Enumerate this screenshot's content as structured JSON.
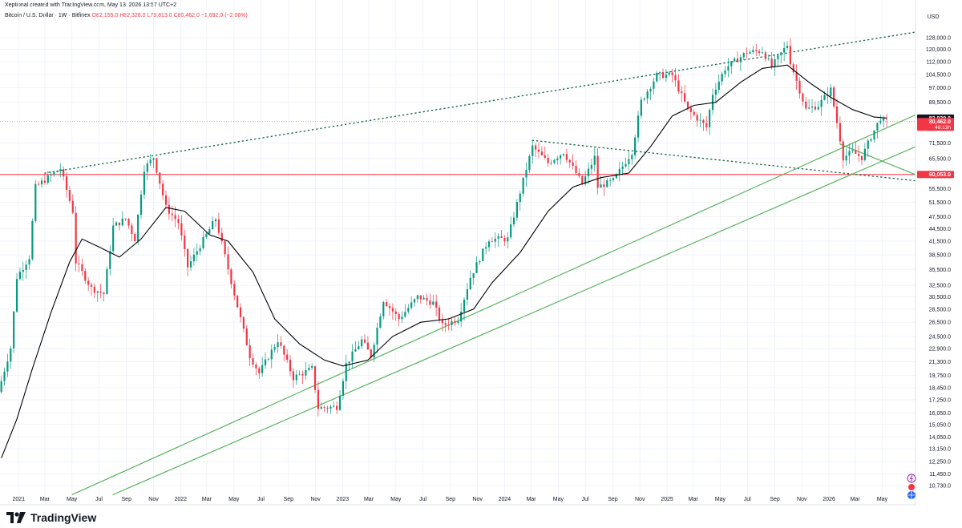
{
  "header": {
    "caption": "Xeptional created with TradingView.com, May 13, 2026 13:57 UTC+2",
    "symbol": "Bitcoin / U.S. Dollar · 1W · Bitfinex",
    "open": "O82,155.0",
    "high": "H82,328.0",
    "low": "L79,813.0",
    "close": "C80,462.0",
    "change": "−1,692.0 (−2.06%)"
  },
  "brand": {
    "name": "TradingView"
  },
  "colors": {
    "up": "#089981",
    "down": "#f23645",
    "ma": "#000000",
    "trend": "#4caf50",
    "upper": "#1b6b4e",
    "support": "#f23645"
  },
  "chart_data": {
    "type": "candlestick",
    "currency": "USD",
    "yscale": "log",
    "ylim": [
      10000,
      135000
    ],
    "xlim": [
      "2020-11-20",
      "2026-07-15"
    ],
    "yticks": [
      10730,
      11450,
      12250,
      13150,
      14050,
      15050,
      16050,
      17250,
      18450,
      19750,
      21300,
      22900,
      24500,
      26500,
      28500,
      30500,
      32500,
      35500,
      38500,
      41500,
      44500,
      47500,
      51500,
      55500,
      59500,
      65500,
      71500,
      80462,
      82039,
      89500,
      97000,
      104500,
      112000,
      120000,
      128000
    ],
    "ytick_labels": [
      "10,730.0",
      "11,450.0",
      "12,250.0",
      "13,150.0",
      "14,050.0",
      "15,050.0",
      "16,050.0",
      "17,250.0",
      "18,450.0",
      "19,750.0",
      "21,300.0",
      "22,900.0",
      "24,500.0",
      "26,500.0",
      "28,500.0",
      "30,500.0",
      "32,500.0",
      "35,500.0",
      "38,500.0",
      "41,500.0",
      "44,500.0",
      "47,500.0",
      "51,500.0",
      "55,500.0",
      "59,500.0",
      "65,500.0",
      "71,500.0",
      "80,462.0",
      "82,039.0",
      "89,500.0",
      "97,000.0",
      "104,500.0",
      "112,000.0",
      "120,000.0",
      "128,000.0"
    ],
    "xticks": [
      {
        "date": "2021-01-01",
        "label": "2021"
      },
      {
        "date": "2021-03-01",
        "label": "Mar"
      },
      {
        "date": "2021-05-01",
        "label": "May"
      },
      {
        "date": "2021-07-01",
        "label": "Jul"
      },
      {
        "date": "2021-09-01",
        "label": "Sep"
      },
      {
        "date": "2021-11-01",
        "label": "Nov"
      },
      {
        "date": "2022-01-01",
        "label": "2022"
      },
      {
        "date": "2022-03-01",
        "label": "Mar"
      },
      {
        "date": "2022-05-01",
        "label": "May"
      },
      {
        "date": "2022-07-01",
        "label": "Jul"
      },
      {
        "date": "2022-09-01",
        "label": "Sep"
      },
      {
        "date": "2022-11-01",
        "label": "Nov"
      },
      {
        "date": "2023-01-01",
        "label": "2023"
      },
      {
        "date": "2023-03-01",
        "label": "Mar"
      },
      {
        "date": "2023-05-01",
        "label": "May"
      },
      {
        "date": "2023-07-01",
        "label": "Jul"
      },
      {
        "date": "2023-09-01",
        "label": "Sep"
      },
      {
        "date": "2023-11-01",
        "label": "Nov"
      },
      {
        "date": "2024-01-01",
        "label": "2024"
      },
      {
        "date": "2024-03-01",
        "label": "Mar"
      },
      {
        "date": "2024-05-01",
        "label": "May"
      },
      {
        "date": "2024-07-01",
        "label": "Jul"
      },
      {
        "date": "2024-09-01",
        "label": "Sep"
      },
      {
        "date": "2024-11-01",
        "label": "Nov"
      },
      {
        "date": "2025-01-01",
        "label": "2025"
      },
      {
        "date": "2025-03-01",
        "label": "Mar"
      },
      {
        "date": "2025-05-01",
        "label": "May"
      },
      {
        "date": "2025-07-01",
        "label": "Jul"
      },
      {
        "date": "2025-09-01",
        "label": "Sep"
      },
      {
        "date": "2025-11-01",
        "label": "Nov"
      },
      {
        "date": "2026-01-01",
        "label": "2026"
      },
      {
        "date": "2026-03-01",
        "label": "Mar"
      },
      {
        "date": "2026-05-01",
        "label": "May"
      }
    ],
    "price_path": [
      [
        "2020-11-23",
        18000
      ],
      [
        "2020-12-21",
        23000
      ],
      [
        "2021-01-04",
        34000
      ],
      [
        "2021-02-01",
        38000
      ],
      [
        "2021-02-15",
        56000
      ],
      [
        "2021-03-15",
        59000
      ],
      [
        "2021-04-12",
        62000
      ],
      [
        "2021-05-10",
        49000
      ],
      [
        "2021-05-17",
        37000
      ],
      [
        "2021-06-21",
        32000
      ],
      [
        "2021-07-19",
        31000
      ],
      [
        "2021-08-09",
        45000
      ],
      [
        "2021-09-06",
        47000
      ],
      [
        "2021-09-27",
        42000
      ],
      [
        "2021-10-18",
        62000
      ],
      [
        "2021-11-08",
        66000
      ],
      [
        "2021-12-06",
        50000
      ],
      [
        "2022-01-03",
        46000
      ],
      [
        "2022-01-24",
        36000
      ],
      [
        "2022-03-28",
        47000
      ],
      [
        "2022-05-09",
        31000
      ],
      [
        "2022-06-13",
        22000
      ],
      [
        "2022-07-04",
        20000
      ],
      [
        "2022-08-15",
        24000
      ],
      [
        "2022-09-19",
        19500
      ],
      [
        "2022-10-31",
        20500
      ],
      [
        "2022-11-14",
        16500
      ],
      [
        "2022-12-26",
        16600
      ],
      [
        "2023-01-16",
        21000
      ],
      [
        "2023-02-20",
        24000
      ],
      [
        "2023-03-13",
        22000
      ],
      [
        "2023-04-10",
        30000
      ],
      [
        "2023-05-15",
        27000
      ],
      [
        "2023-06-26",
        30500
      ],
      [
        "2023-07-31",
        29500
      ],
      [
        "2023-08-21",
        26000
      ],
      [
        "2023-09-25",
        27000
      ],
      [
        "2023-10-23",
        34000
      ],
      [
        "2023-12-04",
        42000
      ],
      [
        "2024-01-15",
        42000
      ],
      [
        "2024-02-26",
        62000
      ],
      [
        "2024-03-11",
        70000
      ],
      [
        "2024-04-15",
        64000
      ],
      [
        "2024-05-20",
        68000
      ],
      [
        "2024-07-01",
        57000
      ],
      [
        "2024-07-29",
        66000
      ],
      [
        "2024-08-05",
        56000
      ],
      [
        "2024-09-09",
        58000
      ],
      [
        "2024-10-21",
        68000
      ],
      [
        "2024-11-11",
        90000
      ],
      [
        "2024-12-16",
        104000
      ],
      [
        "2025-01-20",
        104000
      ],
      [
        "2025-02-24",
        86000
      ],
      [
        "2025-04-07",
        78000
      ],
      [
        "2025-04-21",
        94000
      ],
      [
        "2025-05-19",
        108000
      ],
      [
        "2025-07-07",
        118000
      ],
      [
        "2025-08-11",
        119000
      ],
      [
        "2025-09-01",
        109000
      ],
      [
        "2025-10-06",
        123000
      ],
      [
        "2025-10-13",
        112000
      ],
      [
        "2025-11-17",
        86000
      ],
      [
        "2025-12-15",
        88000
      ],
      [
        "2026-01-12",
        96000
      ],
      [
        "2026-02-02",
        73000
      ],
      [
        "2026-02-09",
        66000
      ],
      [
        "2026-03-02",
        68000
      ],
      [
        "2026-03-23",
        66000
      ],
      [
        "2026-04-13",
        74000
      ],
      [
        "2026-05-04",
        82155
      ],
      [
        "2026-05-11",
        80462
      ]
    ],
    "ma_path": [
      [
        "2020-11-23",
        12500
      ],
      [
        "2020-12-28",
        15500
      ],
      [
        "2021-02-01",
        20500
      ],
      [
        "2021-03-15",
        28000
      ],
      [
        "2021-04-26",
        37000
      ],
      [
        "2021-05-24",
        42000
      ],
      [
        "2021-07-05",
        40000
      ],
      [
        "2021-08-16",
        38000
      ],
      [
        "2021-10-04",
        42000
      ],
      [
        "2021-11-29",
        50000
      ],
      [
        "2022-01-10",
        49000
      ],
      [
        "2022-03-07",
        43000
      ],
      [
        "2022-04-18",
        41500
      ],
      [
        "2022-06-13",
        35000
      ],
      [
        "2022-08-01",
        27000
      ],
      [
        "2022-09-26",
        23500
      ],
      [
        "2022-11-21",
        21500
      ],
      [
        "2023-01-02",
        20800
      ],
      [
        "2023-02-27",
        21500
      ],
      [
        "2023-04-24",
        24500
      ],
      [
        "2023-06-26",
        26500
      ],
      [
        "2023-08-28",
        27000
      ],
      [
        "2023-10-23",
        28500
      ],
      [
        "2023-12-04",
        33000
      ],
      [
        "2024-02-05",
        39000
      ],
      [
        "2024-04-08",
        49000
      ],
      [
        "2024-06-03",
        56000
      ],
      [
        "2024-08-05",
        59000
      ],
      [
        "2024-10-07",
        60500
      ],
      [
        "2024-11-25",
        70000
      ],
      [
        "2025-01-13",
        83000
      ],
      [
        "2025-03-03",
        88000
      ],
      [
        "2025-04-21",
        89500
      ],
      [
        "2025-06-16",
        100000
      ],
      [
        "2025-08-04",
        108000
      ],
      [
        "2025-09-29",
        110000
      ],
      [
        "2025-11-17",
        100000
      ],
      [
        "2026-01-05",
        92000
      ],
      [
        "2026-02-23",
        86000
      ],
      [
        "2026-04-13",
        82500
      ],
      [
        "2026-05-11",
        82039
      ]
    ],
    "lines": [
      {
        "name": "upper-dotted",
        "style": "dotted",
        "color": "#1b6b4e",
        "from": [
          "2021-03-01",
          60500
        ],
        "to": [
          "2026-07-15",
          132000
        ]
      },
      {
        "name": "descending-dotted",
        "style": "dotted",
        "color": "#1b6b4e",
        "from": [
          "2024-03-04",
          72500
        ],
        "to": [
          "2026-07-15",
          58000
        ]
      },
      {
        "name": "channel-upper",
        "style": "solid",
        "color": "#4caf50",
        "from": [
          "2021-05-01",
          10200
        ],
        "to": [
          "2026-07-15",
          83500
        ]
      },
      {
        "name": "channel-lower",
        "style": "solid",
        "color": "#4caf50",
        "from": [
          "2021-08-01",
          10200
        ],
        "to": [
          "2026-07-15",
          70000
        ]
      },
      {
        "name": "arrow-segment",
        "style": "solid",
        "color": "#4caf50",
        "from": [
          "2026-01-26",
          71000
        ],
        "to": [
          "2026-07-15",
          60000
        ]
      }
    ],
    "support_level": 60053,
    "price_labels": [
      {
        "text": "82,039.0",
        "sub": "",
        "color": "#131722",
        "price": 82039
      },
      {
        "text": "80,462.0",
        "sub": "48:13h",
        "color": "#f23645",
        "price": 80462
      },
      {
        "text": "60,053.0",
        "sub": "",
        "color": "#f23645",
        "price": 60053
      }
    ]
  }
}
